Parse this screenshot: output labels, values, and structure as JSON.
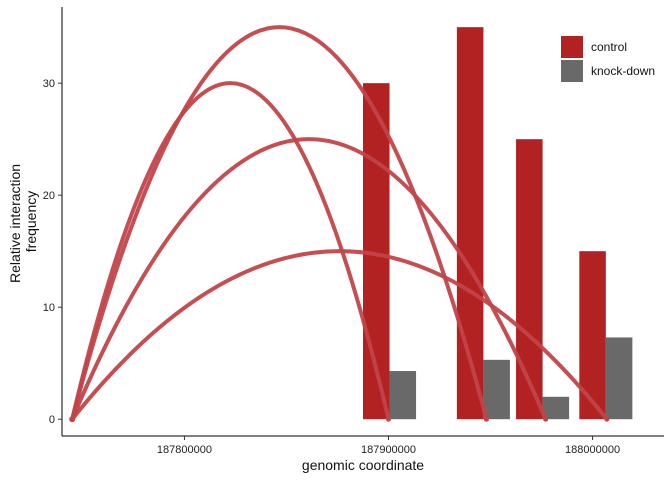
{
  "chart_data": {
    "type": "bar",
    "title": "",
    "xlabel": "genomic coordinate",
    "ylabel": [
      "Relative interaction",
      "frequency"
    ],
    "xlim": [
      187740000,
      188035000
    ],
    "ylim": [
      -1.5,
      36.8
    ],
    "xticks": [
      {
        "value": 187800000,
        "label": "187800000"
      },
      {
        "value": 187900000,
        "label": "187900000"
      },
      {
        "value": 188000000,
        "label": "188000000"
      }
    ],
    "yticks": [
      {
        "value": 0,
        "label": "0"
      },
      {
        "value": 10,
        "label": "10"
      },
      {
        "value": 20,
        "label": "20"
      },
      {
        "value": 30,
        "label": "30"
      }
    ],
    "grid": false,
    "legend_position": "top-right",
    "colors": {
      "control": "#b22222",
      "knock_down": "#696969",
      "arc": "#c14449",
      "axis": "#000000"
    },
    "legend": [
      {
        "label": "control",
        "color": "#b22222"
      },
      {
        "label": "knock-down",
        "color": "#696969"
      }
    ],
    "arc_origin": 187745000,
    "bar_halfwidth": 6500,
    "series": [
      {
        "name": "control",
        "color": "#b22222",
        "points": [
          {
            "x": 187894000,
            "value": 30
          },
          {
            "x": 187940000,
            "value": 35
          },
          {
            "x": 187969000,
            "value": 25
          },
          {
            "x": 188000000,
            "value": 15
          }
        ]
      },
      {
        "name": "knock-down",
        "color": "#696969",
        "points": [
          {
            "x": 187907000,
            "value": 4.3
          },
          {
            "x": 187953000,
            "value": 5.3
          },
          {
            "x": 187982000,
            "value": 2.0
          },
          {
            "x": 188013000,
            "value": 7.3
          }
        ]
      }
    ],
    "arcs": [
      {
        "end": 187900000,
        "height": 30
      },
      {
        "end": 187948000,
        "height": 35
      },
      {
        "end": 187977000,
        "height": 25
      },
      {
        "end": 188007000,
        "height": 15
      }
    ]
  }
}
